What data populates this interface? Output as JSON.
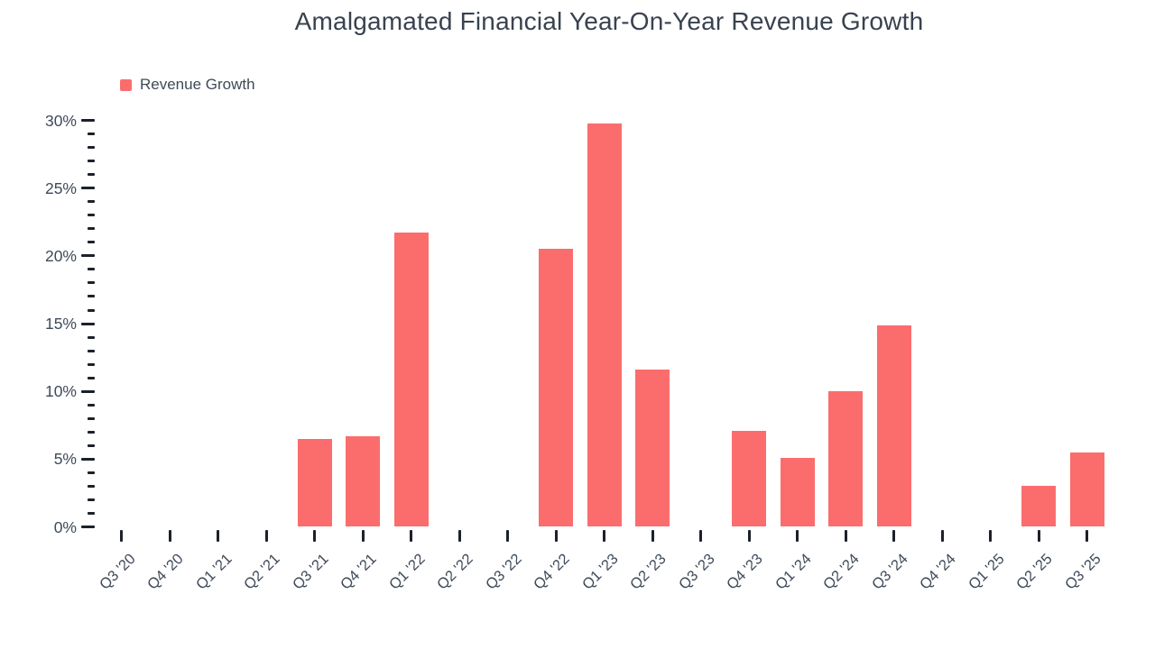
{
  "title": "Amalgamated Financial Year-On-Year Revenue Growth",
  "legend": {
    "label": "Revenue Growth"
  },
  "colors": {
    "bar": "#fb6d6d",
    "tick": "#1c2129",
    "text": "#3f4a5a",
    "title_text": "#39424f",
    "background": "#ffffff"
  },
  "chart_data": {
    "type": "bar",
    "title": "Amalgamated Financial Year-On-Year Revenue Growth",
    "xlabel": "",
    "ylabel": "",
    "categories": [
      "Q3 '20",
      "Q4 '20",
      "Q1 '21",
      "Q2 '21",
      "Q3 '21",
      "Q4 '21",
      "Q1 '22",
      "Q2 '22",
      "Q3 '22",
      "Q4 '22",
      "Q1 '23",
      "Q2 '23",
      "Q3 '23",
      "Q4 '23",
      "Q1 '24",
      "Q2 '24",
      "Q3 '24",
      "Q4 '24",
      "Q1 '25",
      "Q2 '25",
      "Q3 '25"
    ],
    "series": [
      {
        "name": "Revenue Growth",
        "unit": "%",
        "values": [
          0,
          0,
          0,
          0,
          6.5,
          6.7,
          21.7,
          0,
          0,
          20.5,
          29.8,
          11.6,
          0,
          7.1,
          5.1,
          10.0,
          14.9,
          0,
          0,
          3.0,
          5.5
        ]
      }
    ],
    "ylim": [
      0,
      30
    ],
    "y_major_step": 5,
    "y_minor_step": 1,
    "y_tick_labels": [
      "0%",
      "5%",
      "10%",
      "15%",
      "20%",
      "25%",
      "30%"
    ],
    "grid": false,
    "legend_position": "top-left",
    "bar_color": "#fb6d6d",
    "note_quarters_with_no_bar": [
      "Q3 '20",
      "Q4 '20",
      "Q1 '21",
      "Q2 '21",
      "Q2 '22",
      "Q3 '22",
      "Q3 '23",
      "Q4 '24",
      "Q1 '25"
    ]
  }
}
